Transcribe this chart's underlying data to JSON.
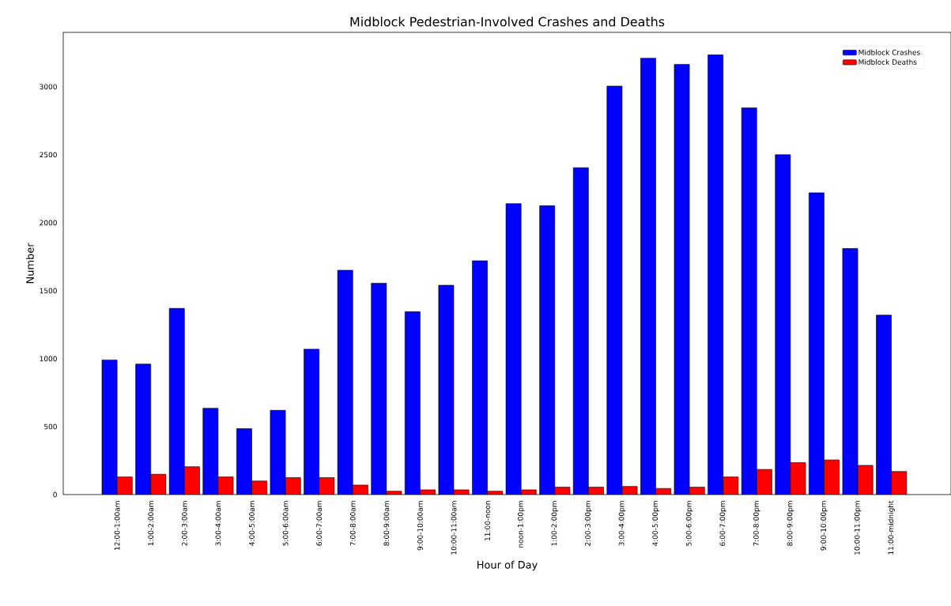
{
  "chart_data": {
    "type": "bar",
    "title": "Midblock Pedestrian-Involved Crashes and Deaths",
    "xlabel": "Hour of Day",
    "ylabel": "Number",
    "categories": [
      "12:00-1:00am",
      "1:00-2:00am",
      "2:00-3:00am",
      "3:00-4:00am",
      "4:00-5:00am",
      "5:00-6:00am",
      "6:00-7:00am",
      "7:00-8:00am",
      "8:00-9:00am",
      "9:00-10:00am",
      "10:00-11:00am",
      "11:00-noon",
      "noon-1:00pm",
      "1:00-2:00pm",
      "2:00-3:00pm",
      "3:00-4:00pm",
      "4:00-5:00pm",
      "5:00-6:00pm",
      "6:00-7:00pm",
      "7:00-8:00pm",
      "8:00-9:00pm",
      "9:00-10:00pm",
      "10:00-11:00pm",
      "11:00-midnight"
    ],
    "series": [
      {
        "name": "Midblock Crashes",
        "color": "#0000ff",
        "values": [
          990,
          960,
          1370,
          635,
          485,
          620,
          1070,
          1650,
          1555,
          1345,
          1540,
          1720,
          2140,
          2125,
          2405,
          3005,
          3210,
          3165,
          3235,
          2845,
          2500,
          2220,
          1810,
          1320
        ]
      },
      {
        "name": "Midblock Deaths",
        "color": "#ff0000",
        "values": [
          130,
          150,
          205,
          130,
          100,
          125,
          125,
          70,
          25,
          35,
          35,
          25,
          35,
          55,
          55,
          60,
          45,
          55,
          130,
          185,
          235,
          255,
          215,
          170
        ]
      }
    ],
    "ylim": [
      0,
      3400
    ],
    "yticks": [
      0,
      500,
      1000,
      1500,
      2000,
      2500,
      3000
    ],
    "legend": "top right"
  }
}
